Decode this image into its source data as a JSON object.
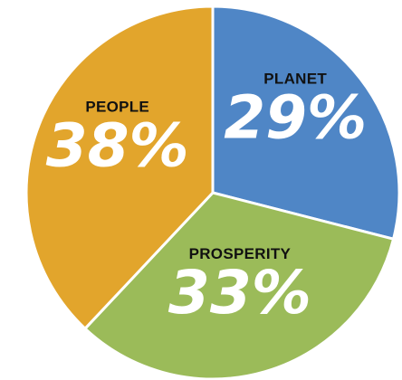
{
  "chart_data": {
    "type": "pie",
    "start_angle_deg": 0,
    "direction": "clockwise",
    "slices": [
      {
        "label": "PLANET",
        "value": 29,
        "display": "29%",
        "color": "#4f86c6"
      },
      {
        "label": "PROSPERITY",
        "value": 33,
        "display": "33%",
        "color": "#9bbb59"
      },
      {
        "label": "PEOPLE",
        "value": 38,
        "display": "38%",
        "color": "#e2a52c"
      }
    ],
    "title": "",
    "legend": "none",
    "slice_border_color": "#ffffff"
  }
}
